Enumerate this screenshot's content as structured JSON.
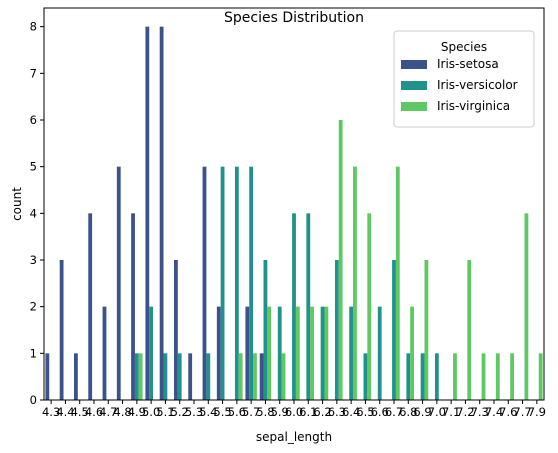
{
  "chart_data": {
    "type": "bar",
    "title": "Species Distribution",
    "xlabel": "sepal_length",
    "ylabel": "count",
    "ylim": [
      0,
      8.4
    ],
    "yticks": [
      0,
      1,
      2,
      3,
      4,
      5,
      6,
      7,
      8
    ],
    "categories": [
      "4.3",
      "4.4",
      "4.5",
      "4.6",
      "4.7",
      "4.8",
      "4.9",
      "5.0",
      "5.1",
      "5.2",
      "5.3",
      "5.4",
      "5.5",
      "5.6",
      "5.7",
      "5.8",
      "5.9",
      "6.0",
      "6.1",
      "6.2",
      "6.3",
      "6.4",
      "6.5",
      "6.6",
      "6.7",
      "6.8",
      "6.9",
      "7.0",
      "7.1",
      "7.2",
      "7.3",
      "7.4",
      "7.6",
      "7.7",
      "7.9"
    ],
    "legend": {
      "title": "Species",
      "placement": "top-right"
    },
    "series": [
      {
        "name": "Iris-setosa",
        "color": "#3b528b",
        "values": [
          1,
          3,
          1,
          4,
          2,
          5,
          4,
          8,
          8,
          3,
          1,
          5,
          2,
          0,
          2,
          1,
          0,
          0,
          0,
          0,
          0,
          0,
          0,
          0,
          0,
          0,
          0,
          0,
          0,
          0,
          0,
          0,
          0,
          0,
          0
        ]
      },
      {
        "name": "Iris-versicolor",
        "color": "#21918c",
        "values": [
          0,
          0,
          0,
          0,
          0,
          0,
          1,
          2,
          1,
          1,
          0,
          1,
          5,
          5,
          5,
          3,
          2,
          4,
          4,
          2,
          3,
          2,
          1,
          2,
          3,
          1,
          1,
          1,
          0,
          0,
          0,
          0,
          0,
          0,
          0
        ]
      },
      {
        "name": "Iris-virginica",
        "color": "#5ec962",
        "values": [
          0,
          0,
          0,
          0,
          0,
          0,
          1,
          0,
          0,
          0,
          0,
          0,
          0,
          1,
          1,
          2,
          1,
          2,
          2,
          2,
          6,
          5,
          4,
          0,
          5,
          2,
          3,
          0,
          1,
          3,
          1,
          1,
          1,
          4,
          1
        ]
      }
    ]
  }
}
